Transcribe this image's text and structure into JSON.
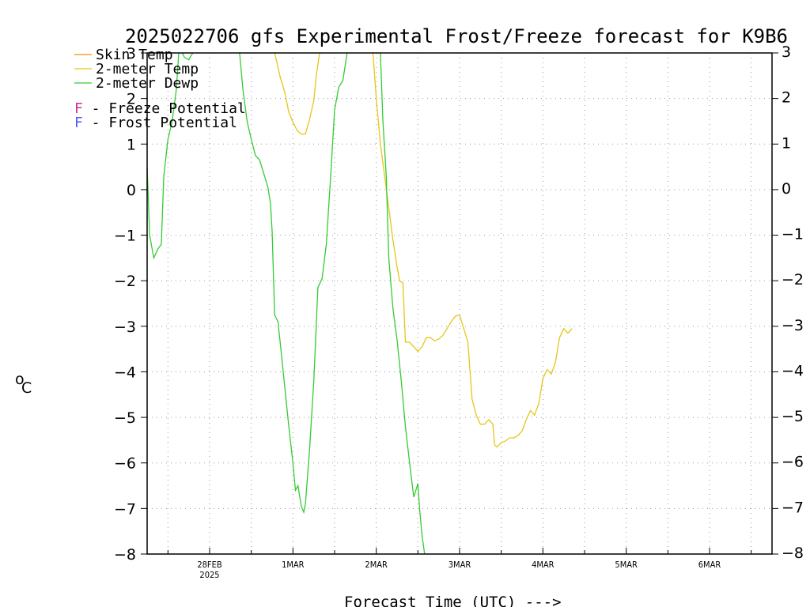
{
  "chart_data": {
    "type": "line",
    "title": "2025022706 gfs Experimental Frost/Freeze forecast for K9B6",
    "xlabel": "Forecast Time (UTC) --->",
    "ylabel": "°C",
    "ylabel_degree": "o",
    "ylabel_unit": "C",
    "ylim": [
      -8,
      3
    ],
    "yticks": [
      3,
      2,
      1,
      0,
      -1,
      -2,
      -3,
      -4,
      -5,
      -6,
      -7,
      -8
    ],
    "ytick_labels": [
      "3",
      "2",
      "1",
      "0",
      "−1",
      "−2",
      "−3",
      "−4",
      "−5",
      "−6",
      "−7",
      "−8"
    ],
    "xlim": [
      -0.75,
      6.75
    ],
    "xticks": [
      {
        "x": 0,
        "label": "28FEB",
        "sublabel": "2025"
      },
      {
        "x": 1,
        "label": "1MAR",
        "sublabel": ""
      },
      {
        "x": 2,
        "label": "2MAR",
        "sublabel": ""
      },
      {
        "x": 3,
        "label": "3MAR",
        "sublabel": ""
      },
      {
        "x": 4,
        "label": "4MAR",
        "sublabel": ""
      },
      {
        "x": 5,
        "label": "5MAR",
        "sublabel": ""
      },
      {
        "x": 6,
        "label": "6MAR",
        "sublabel": ""
      }
    ],
    "grid": true,
    "legend": {
      "position": "top-left",
      "entries": [
        {
          "label": "Skin Temp",
          "color": "#ff8800"
        },
        {
          "label": "2-meter Temp",
          "color": "#e6c619"
        },
        {
          "label": "2-meter Dewp",
          "color": "#33cc33"
        }
      ],
      "potentials": [
        {
          "letter": "F",
          "label": " - Freeze Potential",
          "color": "#c8318f"
        },
        {
          "letter": "F",
          "label": " - Frost Potential",
          "color": "#4f5bf0"
        }
      ]
    },
    "series": [
      {
        "name": "2-meter Temp",
        "color": "#e6c619",
        "segments": [
          [
            [
              0.78,
              3.0
            ],
            [
              0.8,
              2.85
            ],
            [
              0.85,
              2.45
            ],
            [
              0.9,
              2.15
            ],
            [
              0.95,
              1.7
            ],
            [
              1.0,
              1.48
            ],
            [
              1.05,
              1.3
            ],
            [
              1.1,
              1.22
            ],
            [
              1.15,
              1.22
            ],
            [
              1.2,
              1.55
            ],
            [
              1.25,
              1.95
            ],
            [
              1.28,
              2.5
            ],
            [
              1.32,
              3.0
            ]
          ],
          [
            [
              1.96,
              3.0
            ],
            [
              2.0,
              2.0
            ],
            [
              2.05,
              1.0
            ],
            [
              2.1,
              0.3
            ],
            [
              2.15,
              -0.4
            ],
            [
              2.2,
              -1.1
            ],
            [
              2.25,
              -1.7
            ],
            [
              2.28,
              -2.0
            ],
            [
              2.32,
              -2.05
            ],
            [
              2.35,
              -3.35
            ],
            [
              2.4,
              -3.35
            ],
            [
              2.45,
              -3.45
            ],
            [
              2.5,
              -3.55
            ],
            [
              2.55,
              -3.45
            ],
            [
              2.6,
              -3.25
            ],
            [
              2.65,
              -3.25
            ],
            [
              2.7,
              -3.32
            ],
            [
              2.75,
              -3.28
            ],
            [
              2.8,
              -3.2
            ],
            [
              2.85,
              -3.05
            ],
            [
              2.9,
              -2.9
            ],
            [
              2.95,
              -2.78
            ],
            [
              3.0,
              -2.75
            ],
            [
              3.05,
              -3.05
            ],
            [
              3.1,
              -3.35
            ],
            [
              3.15,
              -4.6
            ],
            [
              3.2,
              -4.95
            ],
            [
              3.25,
              -5.15
            ],
            [
              3.3,
              -5.15
            ],
            [
              3.35,
              -5.05
            ],
            [
              3.4,
              -5.15
            ],
            [
              3.42,
              -5.6
            ],
            [
              3.45,
              -5.65
            ],
            [
              3.5,
              -5.55
            ],
            [
              3.55,
              -5.52
            ],
            [
              3.6,
              -5.45
            ],
            [
              3.65,
              -5.45
            ],
            [
              3.7,
              -5.4
            ],
            [
              3.75,
              -5.3
            ],
            [
              3.8,
              -5.05
            ],
            [
              3.85,
              -4.85
            ],
            [
              3.9,
              -4.95
            ],
            [
              3.95,
              -4.7
            ],
            [
              4.0,
              -4.15
            ],
            [
              4.05,
              -3.95
            ],
            [
              4.1,
              -4.05
            ],
            [
              4.15,
              -3.8
            ],
            [
              4.2,
              -3.25
            ],
            [
              4.25,
              -3.05
            ],
            [
              4.3,
              -3.15
            ],
            [
              4.35,
              -3.05
            ]
          ]
        ]
      },
      {
        "name": "2-meter Dewp",
        "color": "#33cc33",
        "segments": [
          [
            [
              -0.75,
              0.5
            ],
            [
              -0.72,
              -1.0
            ],
            [
              -0.67,
              -1.5
            ],
            [
              -0.62,
              -1.3
            ],
            [
              -0.58,
              -1.2
            ],
            [
              -0.55,
              0.3
            ],
            [
              -0.5,
              1.1
            ],
            [
              -0.45,
              1.5
            ],
            [
              -0.4,
              2.2
            ],
            [
              -0.37,
              3.0
            ]
          ],
          [
            [
              -0.33,
              3.0
            ],
            [
              -0.3,
              2.9
            ],
            [
              -0.25,
              2.85
            ],
            [
              -0.22,
              2.95
            ],
            [
              -0.2,
              3.0
            ]
          ],
          [
            [
              0.36,
              3.0
            ],
            [
              0.4,
              2.2
            ],
            [
              0.45,
              1.5
            ],
            [
              0.5,
              1.1
            ],
            [
              0.55,
              0.75
            ],
            [
              0.6,
              0.65
            ],
            [
              0.65,
              0.35
            ],
            [
              0.7,
              0.05
            ],
            [
              0.73,
              -0.3
            ],
            [
              0.75,
              -0.9
            ],
            [
              0.78,
              -2.75
            ],
            [
              0.82,
              -2.9
            ],
            [
              0.85,
              -3.4
            ],
            [
              0.9,
              -4.3
            ],
            [
              0.95,
              -5.2
            ],
            [
              1.0,
              -6.0
            ],
            [
              1.03,
              -6.6
            ],
            [
              1.06,
              -6.5
            ],
            [
              1.1,
              -6.95
            ],
            [
              1.13,
              -7.08
            ],
            [
              1.15,
              -6.9
            ],
            [
              1.2,
              -5.7
            ],
            [
              1.25,
              -4.2
            ],
            [
              1.3,
              -2.15
            ],
            [
              1.35,
              -1.95
            ],
            [
              1.4,
              -1.2
            ],
            [
              1.45,
              0.2
            ],
            [
              1.5,
              1.75
            ],
            [
              1.55,
              2.25
            ],
            [
              1.6,
              2.4
            ],
            [
              1.65,
              3.0
            ]
          ],
          [
            [
              2.05,
              3.0
            ],
            [
              2.08,
              1.5
            ],
            [
              2.12,
              0.3
            ],
            [
              2.15,
              -1.5
            ],
            [
              2.2,
              -2.6
            ],
            [
              2.25,
              -3.3
            ],
            [
              2.3,
              -4.2
            ],
            [
              2.35,
              -5.2
            ],
            [
              2.4,
              -6.0
            ],
            [
              2.45,
              -6.75
            ],
            [
              2.5,
              -6.45
            ],
            [
              2.52,
              -7.0
            ],
            [
              2.55,
              -7.6
            ],
            [
              2.58,
              -8.0
            ]
          ]
        ]
      }
    ]
  }
}
